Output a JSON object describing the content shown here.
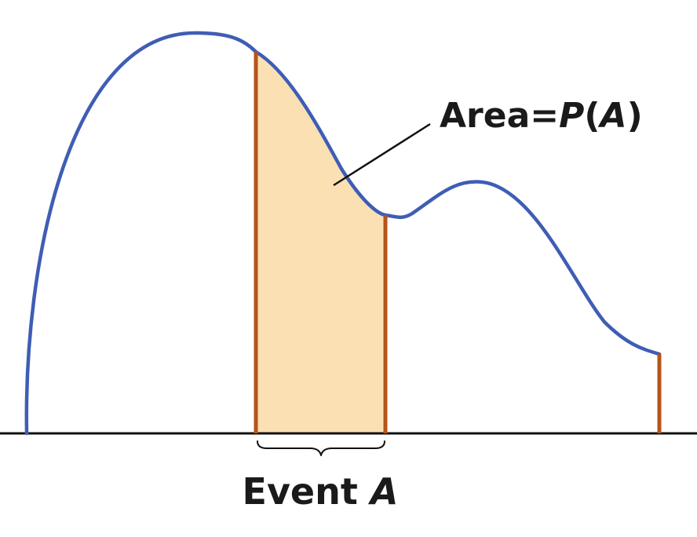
{
  "diagram": {
    "area_label": {
      "prefix": "Area=",
      "italic": "P",
      "open": "(",
      "italic2": "A",
      "close": ")"
    },
    "event_label": {
      "word": "Event ",
      "italic": "A"
    }
  },
  "colors": {
    "curve": "#3f5db5",
    "boundary": "#b5541a",
    "shaded_region": "#fbe0b4",
    "baseline": "#111111",
    "leader": "#111111",
    "text": "#1a1a1a"
  }
}
